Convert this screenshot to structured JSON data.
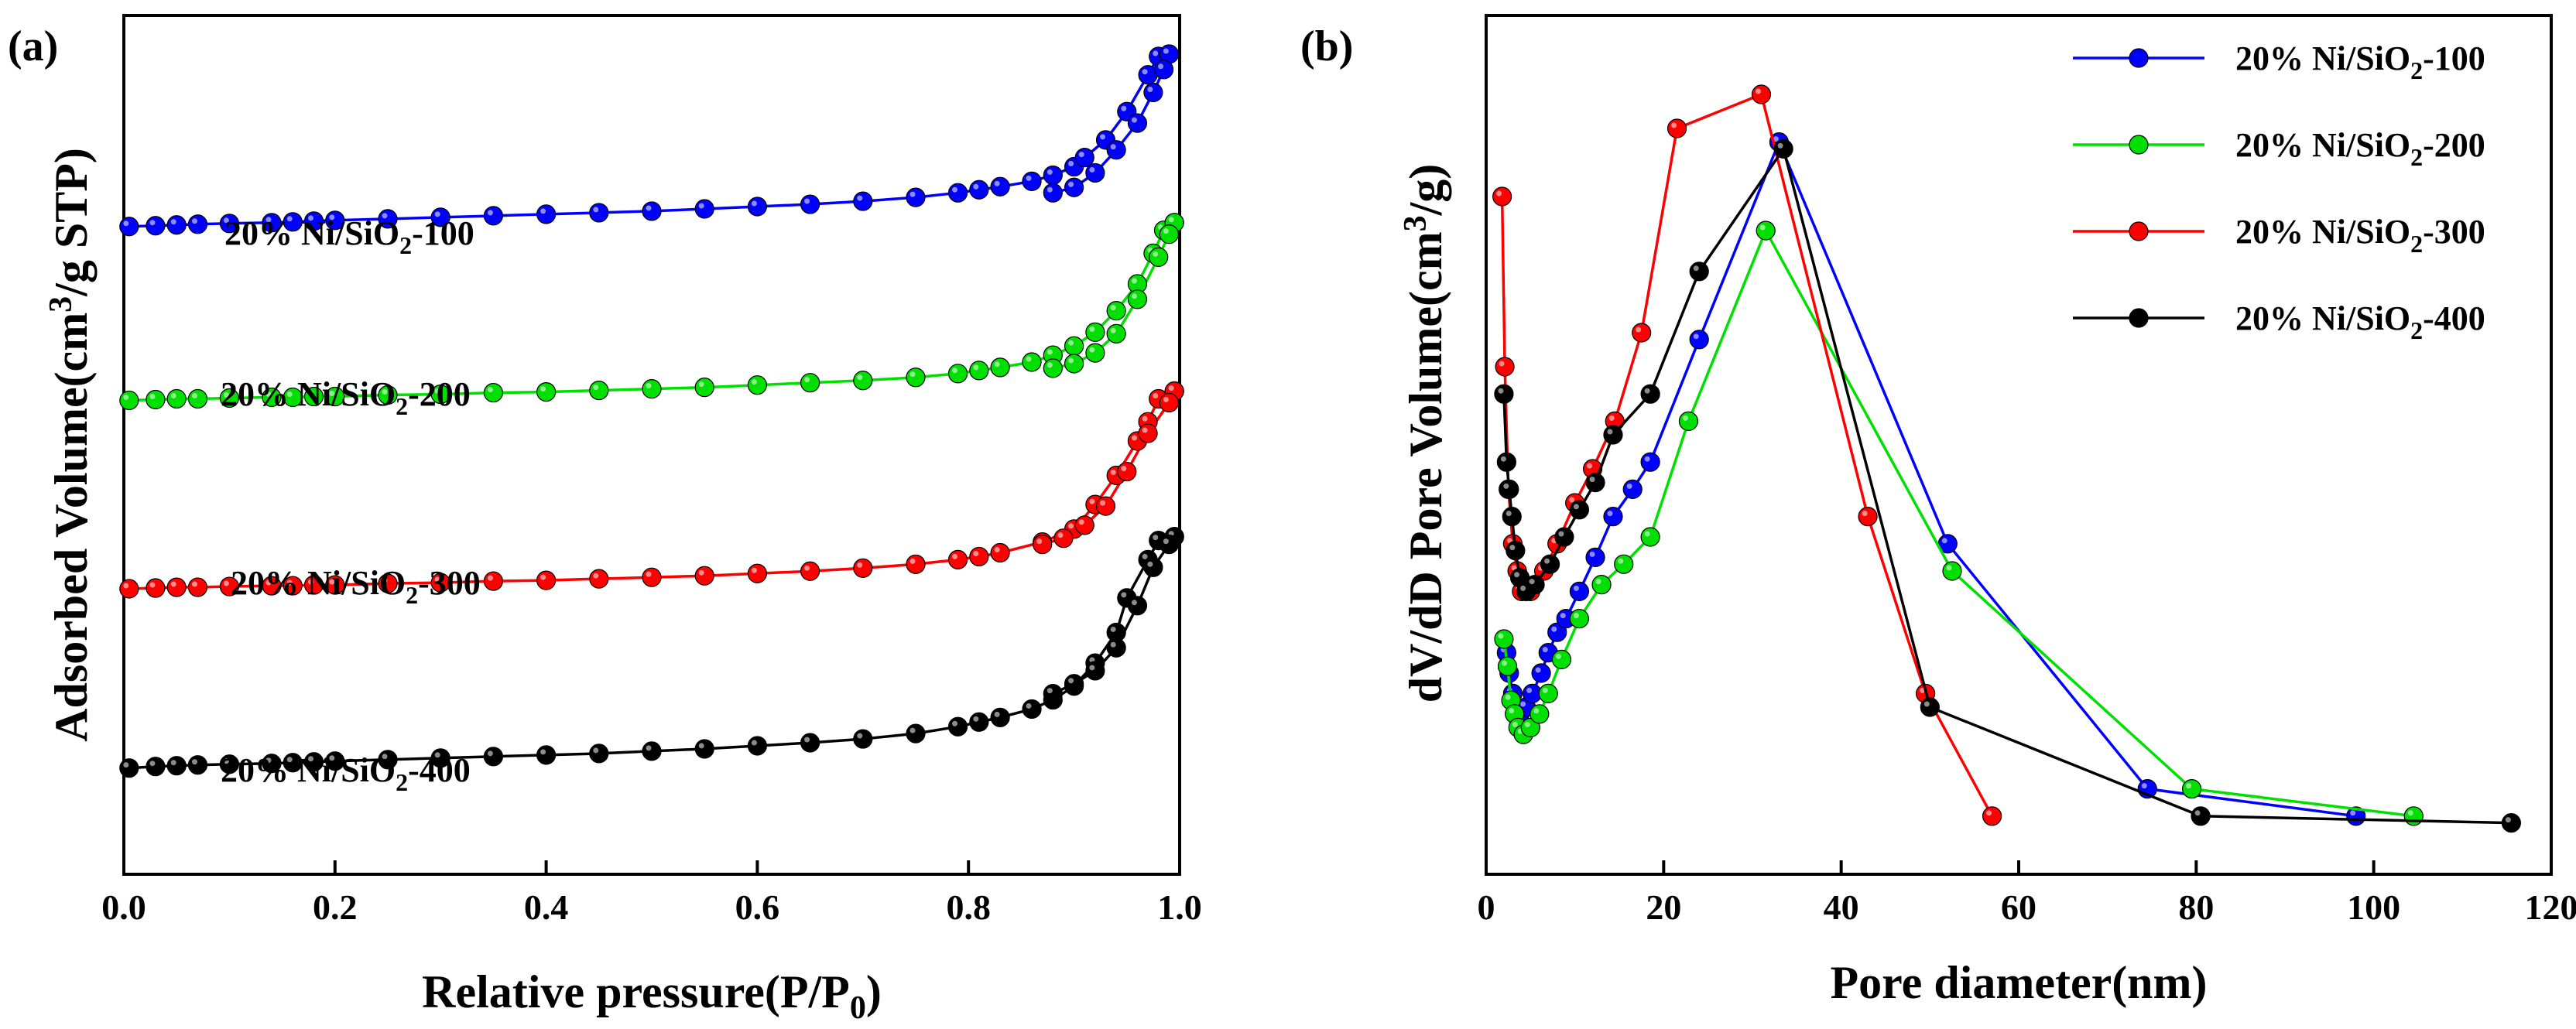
{
  "chart_data": [
    {
      "type": "scatter",
      "panel_label": "(a)",
      "xlabel": "Relative pressure(P/P",
      "xlabel_sub": "0",
      "xlabel_end": ")",
      "ylabel": "Adsorbed Volume(cm",
      "ylabel_sup": "3",
      "ylabel_end": "/g STP)",
      "xlim": [
        0.0,
        1.0
      ],
      "ylim": [
        0,
        100
      ],
      "yticks_shown": false,
      "xticks": [
        "0.0",
        "0.2",
        "0.4",
        "0.6",
        "0.8",
        "1.0"
      ],
      "series": [
        {
          "name": "20% Ni/SiO2-100",
          "label_main": "20% Ni/SiO",
          "label_sub": "2",
          "label_end": "-100",
          "color": "#0000ff",
          "adsorption": [
            [
              0.005,
              77.5
            ],
            [
              0.03,
              77.6
            ],
            [
              0.05,
              77.7
            ],
            [
              0.07,
              77.8
            ],
            [
              0.1,
              77.9
            ],
            [
              0.14,
              78.0
            ],
            [
              0.16,
              78.1
            ],
            [
              0.18,
              78.2
            ],
            [
              0.2,
              78.3
            ],
            [
              0.25,
              78.5
            ],
            [
              0.3,
              78.7
            ],
            [
              0.35,
              78.9
            ],
            [
              0.4,
              79.1
            ],
            [
              0.45,
              79.3
            ],
            [
              0.5,
              79.5
            ],
            [
              0.55,
              79.8
            ],
            [
              0.6,
              80.1
            ],
            [
              0.65,
              80.4
            ],
            [
              0.7,
              80.8
            ],
            [
              0.75,
              81.3
            ],
            [
              0.79,
              81.9
            ],
            [
              0.81,
              82.3
            ],
            [
              0.83,
              82.7
            ],
            [
              0.86,
              83.4
            ],
            [
              0.88,
              84.2
            ],
            [
              0.9,
              85.3
            ],
            [
              0.91,
              86.5
            ],
            [
              0.93,
              88.8
            ],
            [
              0.95,
              92.5
            ],
            [
              0.97,
              97.3
            ],
            [
              0.98,
              99.7
            ],
            [
              0.99,
              100.0
            ]
          ],
          "desorption": [
            [
              0.99,
              100.0
            ],
            [
              0.985,
              98.0
            ],
            [
              0.975,
              95.0
            ],
            [
              0.96,
              91.0
            ],
            [
              0.94,
              87.5
            ],
            [
              0.92,
              84.5
            ],
            [
              0.9,
              82.6
            ],
            [
              0.88,
              81.9
            ]
          ]
        },
        {
          "name": "20% Ni/SiO2-200",
          "label_main": "20% Ni/SiO",
          "label_sub": "2",
          "label_end": "-200",
          "color": "#00e000",
          "adsorption": [
            [
              0.005,
              54.8
            ],
            [
              0.03,
              54.9
            ],
            [
              0.05,
              55.0
            ],
            [
              0.07,
              55.0
            ],
            [
              0.1,
              55.1
            ],
            [
              0.14,
              55.2
            ],
            [
              0.16,
              55.2
            ],
            [
              0.18,
              55.3
            ],
            [
              0.2,
              55.3
            ],
            [
              0.25,
              55.5
            ],
            [
              0.3,
              55.6
            ],
            [
              0.35,
              55.8
            ],
            [
              0.4,
              55.9
            ],
            [
              0.45,
              56.1
            ],
            [
              0.5,
              56.3
            ],
            [
              0.55,
              56.5
            ],
            [
              0.6,
              56.8
            ],
            [
              0.65,
              57.1
            ],
            [
              0.7,
              57.4
            ],
            [
              0.75,
              57.8
            ],
            [
              0.79,
              58.3
            ],
            [
              0.81,
              58.7
            ],
            [
              0.83,
              59.1
            ],
            [
              0.86,
              59.8
            ],
            [
              0.88,
              60.7
            ],
            [
              0.9,
              61.9
            ],
            [
              0.92,
              63.7
            ],
            [
              0.94,
              66.5
            ],
            [
              0.96,
              70.0
            ],
            [
              0.975,
              74.0
            ],
            [
              0.985,
              77.0
            ],
            [
              0.995,
              78.0
            ]
          ],
          "desorption": [
            [
              0.995,
              78.0
            ],
            [
              0.99,
              76.5
            ],
            [
              0.98,
              73.5
            ],
            [
              0.96,
              68.0
            ],
            [
              0.94,
              63.5
            ],
            [
              0.92,
              61.0
            ],
            [
              0.9,
              59.6
            ],
            [
              0.88,
              59.0
            ]
          ]
        },
        {
          "name": "20% Ni/SiO2-300",
          "label_main": "20% Ni/SiO",
          "label_sub": "2",
          "label_end": "-300",
          "color": "#ff0000",
          "adsorption": [
            [
              0.005,
              30.2
            ],
            [
              0.03,
              30.3
            ],
            [
              0.05,
              30.4
            ],
            [
              0.07,
              30.4
            ],
            [
              0.1,
              30.5
            ],
            [
              0.14,
              30.6
            ],
            [
              0.16,
              30.6
            ],
            [
              0.18,
              30.7
            ],
            [
              0.2,
              30.7
            ],
            [
              0.25,
              30.9
            ],
            [
              0.3,
              31.0
            ],
            [
              0.35,
              31.2
            ],
            [
              0.4,
              31.3
            ],
            [
              0.45,
              31.5
            ],
            [
              0.5,
              31.7
            ],
            [
              0.55,
              31.9
            ],
            [
              0.6,
              32.2
            ],
            [
              0.65,
              32.5
            ],
            [
              0.7,
              32.9
            ],
            [
              0.75,
              33.4
            ],
            [
              0.79,
              34.0
            ],
            [
              0.81,
              34.4
            ],
            [
              0.83,
              34.9
            ],
            [
              0.87,
              36.3
            ],
            [
              0.9,
              38.0
            ],
            [
              0.92,
              41.2
            ],
            [
              0.94,
              45.0
            ],
            [
              0.96,
              49.5
            ],
            [
              0.97,
              52.0
            ],
            [
              0.98,
              55.0
            ],
            [
              0.995,
              56.0
            ]
          ],
          "desorption": [
            [
              0.995,
              56.0
            ],
            [
              0.99,
              54.5
            ],
            [
              0.97,
              50.5
            ],
            [
              0.95,
              45.5
            ],
            [
              0.93,
              41.0
            ],
            [
              0.91,
              38.5
            ],
            [
              0.89,
              36.8
            ],
            [
              0.87,
              36.0
            ]
          ]
        },
        {
          "name": "20% Ni/SiO2-400",
          "label_main": "20% Ni/SiO",
          "label_sub": "2",
          "label_end": "-400",
          "color": "#000000",
          "adsorption": [
            [
              0.005,
              6.8
            ],
            [
              0.03,
              7.0
            ],
            [
              0.05,
              7.1
            ],
            [
              0.07,
              7.2
            ],
            [
              0.1,
              7.3
            ],
            [
              0.14,
              7.4
            ],
            [
              0.16,
              7.5
            ],
            [
              0.18,
              7.6
            ],
            [
              0.2,
              7.7
            ],
            [
              0.25,
              7.9
            ],
            [
              0.3,
              8.1
            ],
            [
              0.35,
              8.3
            ],
            [
              0.4,
              8.5
            ],
            [
              0.45,
              8.7
            ],
            [
              0.5,
              9.0
            ],
            [
              0.55,
              9.3
            ],
            [
              0.6,
              9.7
            ],
            [
              0.65,
              10.1
            ],
            [
              0.7,
              10.6
            ],
            [
              0.75,
              11.3
            ],
            [
              0.79,
              12.2
            ],
            [
              0.81,
              12.8
            ],
            [
              0.83,
              13.4
            ],
            [
              0.86,
              14.5
            ],
            [
              0.88,
              15.7
            ],
            [
              0.9,
              17.5
            ],
            [
              0.92,
              20.5
            ],
            [
              0.94,
              24.5
            ],
            [
              0.95,
              29.0
            ],
            [
              0.97,
              34.0
            ],
            [
              0.98,
              36.5
            ],
            [
              0.995,
              37.0
            ]
          ],
          "desorption": [
            [
              0.995,
              37.0
            ],
            [
              0.99,
              36.0
            ],
            [
              0.975,
              33.0
            ],
            [
              0.96,
              28.0
            ],
            [
              0.94,
              22.5
            ],
            [
              0.92,
              19.5
            ],
            [
              0.9,
              17.8
            ],
            [
              0.88,
              16.5
            ]
          ]
        }
      ]
    },
    {
      "type": "line",
      "panel_label": "(b)",
      "xlabel": "Pore diameter(nm)",
      "ylabel": "dV/dD Pore Volume(cm",
      "ylabel_sup": "3",
      "ylabel_end": "/g)",
      "xlim": [
        0,
        120
      ],
      "ylim": [
        0,
        100
      ],
      "yticks_shown": false,
      "xticks": [
        "0",
        "20",
        "40",
        "60",
        "80",
        "100",
        "120"
      ],
      "legend_position": "top-right",
      "series": [
        {
          "name": "20% Ni/SiO2-100",
          "label_main": "20% Ni/SiO",
          "label_sub": "2",
          "label_end": "-100",
          "color": "#0000ff",
          "points": [
            [
              2.3,
              28
            ],
            [
              2.6,
              25
            ],
            [
              3.0,
              22
            ],
            [
              3.4,
              20
            ],
            [
              3.8,
              19
            ],
            [
              4.5,
              20
            ],
            [
              5.2,
              22
            ],
            [
              6.2,
              25
            ],
            [
              7.0,
              28
            ],
            [
              8.0,
              31
            ],
            [
              9.0,
              33
            ],
            [
              10.5,
              37
            ],
            [
              12.3,
              42
            ],
            [
              14.3,
              48
            ],
            [
              16.5,
              52
            ],
            [
              18.5,
              56
            ],
            [
              24.0,
              74
            ],
            [
              33.0,
              103
            ],
            [
              52.0,
              44
            ],
            [
              74.5,
              8
            ],
            [
              98.0,
              4
            ]
          ]
        },
        {
          "name": "20% Ni/SiO2-200",
          "label_main": "20% Ni/SiO",
          "label_sub": "2",
          "label_end": "-200",
          "color": "#00e000",
          "points": [
            [
              2.0,
              30
            ],
            [
              2.4,
              26
            ],
            [
              2.8,
              21
            ],
            [
              3.2,
              19
            ],
            [
              3.6,
              17
            ],
            [
              4.2,
              16
            ],
            [
              5.0,
              17
            ],
            [
              6.0,
              19
            ],
            [
              7.0,
              22
            ],
            [
              8.5,
              27
            ],
            [
              10.5,
              33
            ],
            [
              13.0,
              38
            ],
            [
              15.5,
              41
            ],
            [
              18.5,
              45
            ],
            [
              22.8,
              62
            ],
            [
              31.5,
              90
            ],
            [
              52.5,
              40
            ],
            [
              79.5,
              8
            ],
            [
              104.5,
              4
            ]
          ]
        },
        {
          "name": "20% Ni/SiO2-300",
          "label_main": "20% Ni/SiO",
          "label_sub": "2",
          "label_end": "-300",
          "color": "#ff0000",
          "points": [
            [
              1.8,
              95
            ],
            [
              2.1,
              70
            ],
            [
              2.5,
              52
            ],
            [
              3.0,
              44
            ],
            [
              3.5,
              40
            ],
            [
              4.0,
              37
            ],
            [
              5.0,
              37
            ],
            [
              6.5,
              40
            ],
            [
              8.0,
              44
            ],
            [
              10.0,
              50
            ],
            [
              12.0,
              55
            ],
            [
              14.5,
              62
            ],
            [
              17.5,
              75
            ],
            [
              21.5,
              105
            ],
            [
              31.0,
              110
            ],
            [
              43.0,
              48
            ],
            [
              49.5,
              22
            ],
            [
              57.0,
              4
            ]
          ]
        },
        {
          "name": "20% Ni/SiO2-400",
          "label_main": "20% Ni/SiO",
          "label_sub": "2",
          "label_end": "-400",
          "color": "#000000",
          "points": [
            [
              2.0,
              66
            ],
            [
              2.3,
              56
            ],
            [
              2.6,
              52
            ],
            [
              2.9,
              48
            ],
            [
              3.3,
              43
            ],
            [
              3.8,
              39
            ],
            [
              4.5,
              37
            ],
            [
              5.5,
              38
            ],
            [
              7.2,
              41
            ],
            [
              8.8,
              45
            ],
            [
              10.5,
              49
            ],
            [
              12.3,
              53
            ],
            [
              14.3,
              60
            ],
            [
              18.5,
              66
            ],
            [
              24.0,
              84
            ],
            [
              33.5,
              102
            ],
            [
              50.0,
              20
            ],
            [
              80.5,
              4
            ],
            [
              115.5,
              3
            ]
          ]
        }
      ]
    }
  ]
}
